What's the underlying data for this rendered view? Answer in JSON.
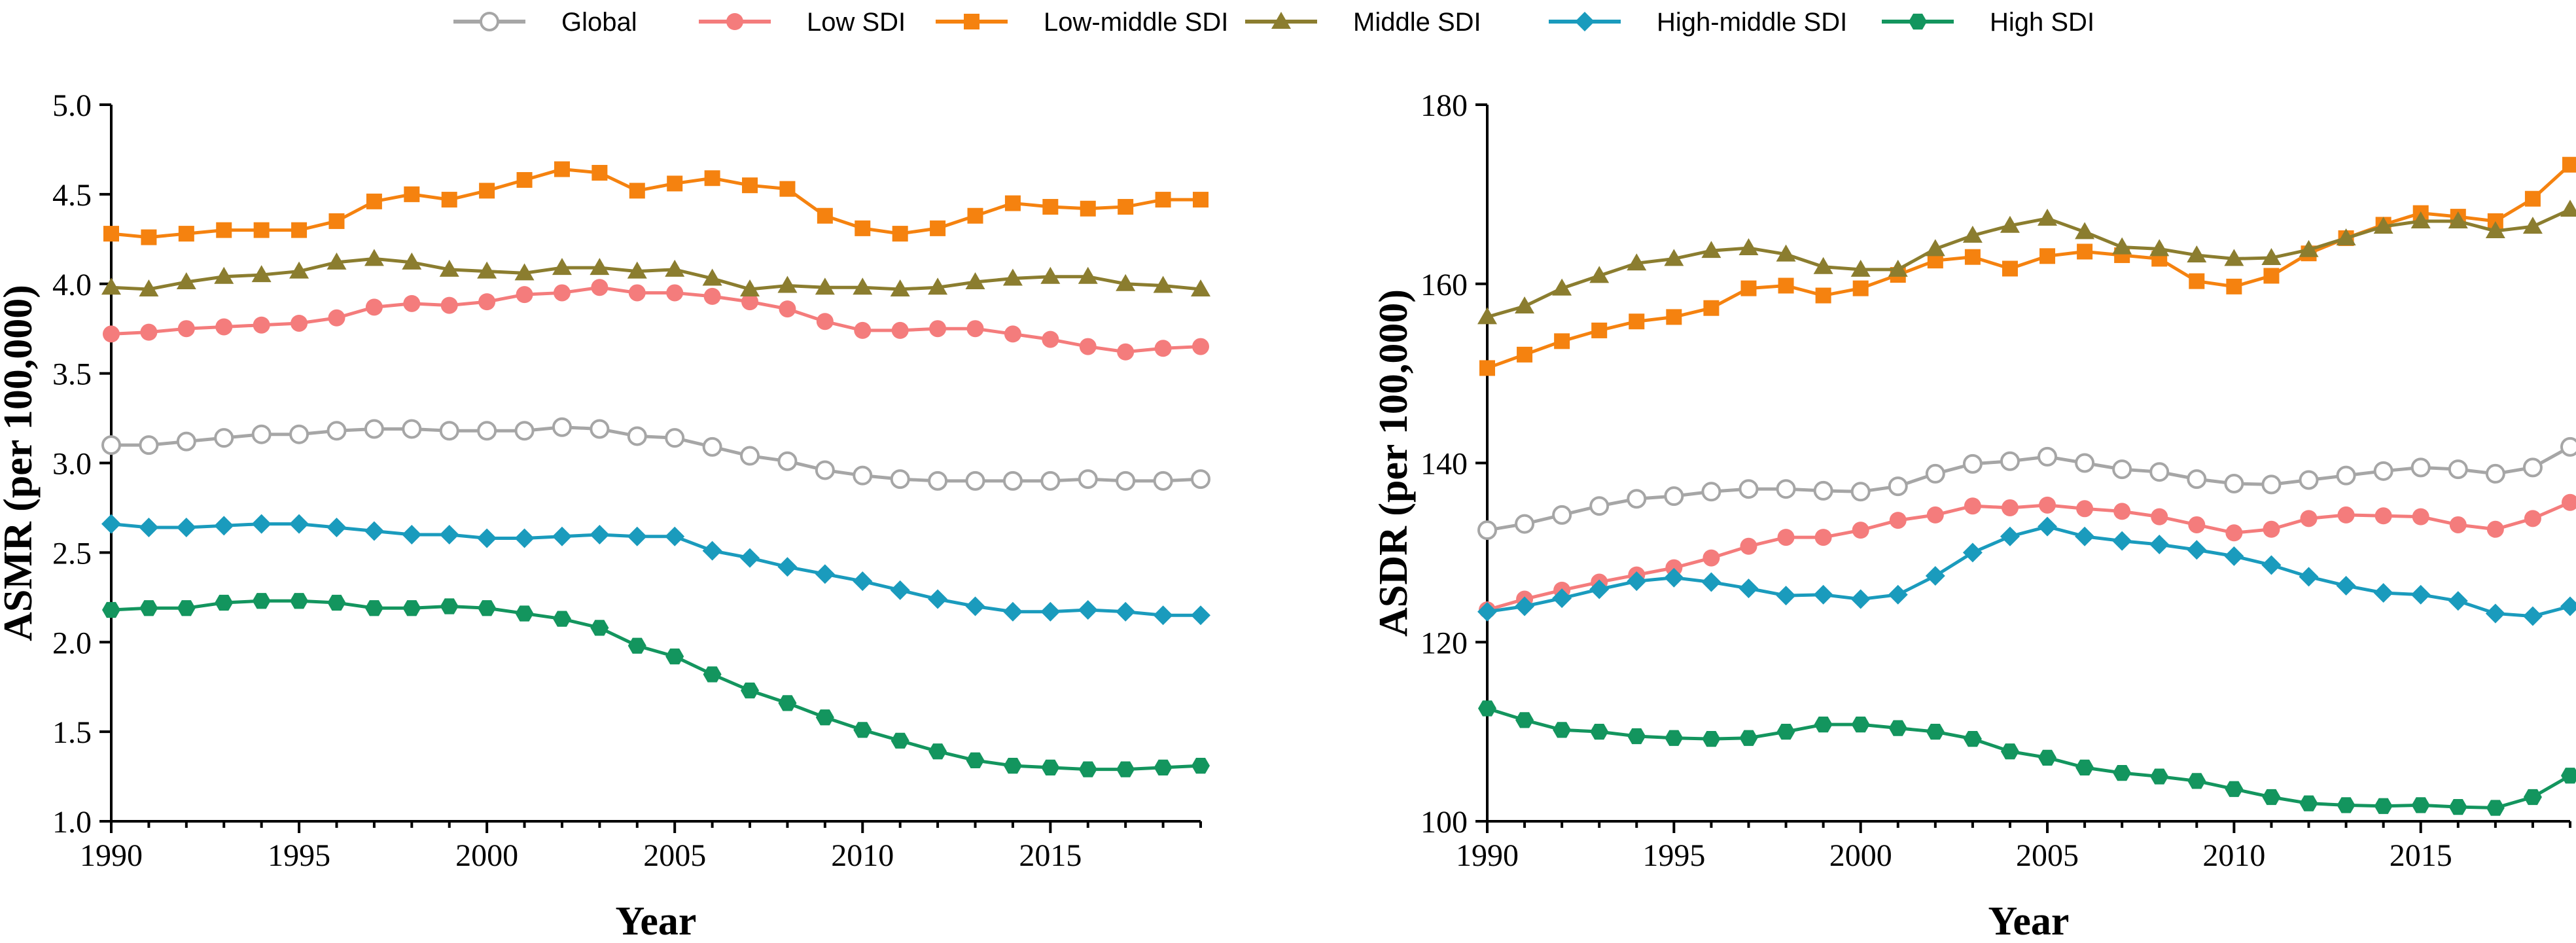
{
  "legend": [
    {
      "name": "Global",
      "color": "#a6a6a6",
      "marker": "circle-open"
    },
    {
      "name": "Low SDI",
      "color": "#f47c7c",
      "marker": "circle"
    },
    {
      "name": "Low-middle SDI",
      "color": "#f5820f",
      "marker": "square"
    },
    {
      "name": "Middle SDI",
      "color": "#8b7d2f",
      "marker": "triangle"
    },
    {
      "name": "High-middle SDI",
      "color": "#1a9bbd",
      "marker": "diamond"
    },
    {
      "name": "High SDI",
      "color": "#13955e",
      "marker": "hexagon"
    }
  ],
  "chart_data": [
    {
      "type": "line",
      "title": "",
      "xlabel": "Year",
      "ylabel": "ASMR (per 100,000)",
      "xlim": [
        1990,
        2019
      ],
      "ylim": [
        1.0,
        5.0
      ],
      "xticks": [
        1990,
        1995,
        2000,
        2005,
        2010,
        2015
      ],
      "xtick_labels": [
        "1990",
        "1995",
        "2000",
        "2005",
        "2010",
        "2015"
      ],
      "yticks": [
        1.0,
        1.5,
        2.0,
        2.5,
        3.0,
        3.5,
        4.0,
        4.5,
        5.0
      ],
      "ytick_labels": [
        "1.0",
        "1.5",
        "2.0",
        "2.5",
        "3.0",
        "3.5",
        "4.0",
        "4.5",
        "5.0"
      ],
      "x": [
        1990,
        1991,
        1992,
        1993,
        1994,
        1995,
        1996,
        1997,
        1998,
        1999,
        2000,
        2001,
        2002,
        2003,
        2004,
        2005,
        2006,
        2007,
        2008,
        2009,
        2010,
        2011,
        2012,
        2013,
        2014,
        2015,
        2016,
        2017,
        2018,
        2019
      ],
      "series": [
        {
          "name": "Global",
          "values": [
            3.1,
            3.1,
            3.12,
            3.14,
            3.16,
            3.16,
            3.18,
            3.19,
            3.19,
            3.18,
            3.18,
            3.18,
            3.2,
            3.19,
            3.15,
            3.14,
            3.09,
            3.04,
            3.01,
            2.96,
            2.93,
            2.91,
            2.9,
            2.9,
            2.9,
            2.9,
            2.91,
            2.9,
            2.9,
            2.91
          ]
        },
        {
          "name": "Low SDI",
          "values": [
            3.72,
            3.73,
            3.75,
            3.76,
            3.77,
            3.78,
            3.81,
            3.87,
            3.89,
            3.88,
            3.9,
            3.94,
            3.95,
            3.98,
            3.95,
            3.95,
            3.93,
            3.9,
            3.86,
            3.79,
            3.74,
            3.74,
            3.75,
            3.75,
            3.72,
            3.69,
            3.65,
            3.62,
            3.64,
            3.65
          ]
        },
        {
          "name": "Low-middle SDI",
          "values": [
            4.28,
            4.26,
            4.28,
            4.3,
            4.3,
            4.3,
            4.35,
            4.46,
            4.5,
            4.47,
            4.52,
            4.58,
            4.64,
            4.62,
            4.52,
            4.56,
            4.59,
            4.55,
            4.53,
            4.38,
            4.31,
            4.28,
            4.31,
            4.38,
            4.45,
            4.43,
            4.42,
            4.43,
            4.47,
            4.47
          ]
        },
        {
          "name": "Middle SDI",
          "values": [
            3.98,
            3.97,
            4.01,
            4.04,
            4.05,
            4.07,
            4.12,
            4.14,
            4.12,
            4.08,
            4.07,
            4.06,
            4.09,
            4.09,
            4.07,
            4.08,
            4.03,
            3.97,
            3.99,
            3.98,
            3.98,
            3.97,
            3.98,
            4.01,
            4.03,
            4.04,
            4.04,
            4.0,
            3.99,
            3.97
          ]
        },
        {
          "name": "High-middle SDI",
          "values": [
            2.66,
            2.64,
            2.64,
            2.65,
            2.66,
            2.66,
            2.64,
            2.62,
            2.6,
            2.6,
            2.58,
            2.58,
            2.59,
            2.6,
            2.59,
            2.59,
            2.51,
            2.47,
            2.42,
            2.38,
            2.34,
            2.29,
            2.24,
            2.2,
            2.17,
            2.17,
            2.18,
            2.17,
            2.15,
            2.15
          ]
        },
        {
          "name": "High SDI",
          "values": [
            2.18,
            2.19,
            2.19,
            2.22,
            2.23,
            2.23,
            2.22,
            2.19,
            2.19,
            2.2,
            2.19,
            2.16,
            2.13,
            2.08,
            1.98,
            1.92,
            1.82,
            1.73,
            1.66,
            1.58,
            1.51,
            1.45,
            1.39,
            1.34,
            1.31,
            1.3,
            1.29,
            1.29,
            1.3,
            1.31
          ]
        }
      ]
    },
    {
      "type": "line",
      "title": "",
      "xlabel": "Year",
      "ylabel": "ASDR (per 100,000)",
      "xlim": [
        1990,
        2019
      ],
      "ylim": [
        100,
        180
      ],
      "xticks": [
        1990,
        1995,
        2000,
        2005,
        2010,
        2015
      ],
      "xtick_labels": [
        "1990",
        "1995",
        "2000",
        "2005",
        "2010",
        "2015"
      ],
      "yticks": [
        100,
        120,
        140,
        160,
        180
      ],
      "ytick_labels": [
        "100",
        "120",
        "140",
        "160",
        "180"
      ],
      "x": [
        1990,
        1991,
        1992,
        1993,
        1994,
        1995,
        1996,
        1997,
        1998,
        1999,
        2000,
        2001,
        2002,
        2003,
        2004,
        2005,
        2006,
        2007,
        2008,
        2009,
        2010,
        2011,
        2012,
        2013,
        2014,
        2015,
        2016,
        2017,
        2018,
        2019
      ],
      "series": [
        {
          "name": "Global",
          "values": [
            132.5,
            133.2,
            134.2,
            135.2,
            136.0,
            136.3,
            136.8,
            137.1,
            137.1,
            136.9,
            136.8,
            137.4,
            138.8,
            139.9,
            140.2,
            140.7,
            140.0,
            139.3,
            139.0,
            138.2,
            137.7,
            137.6,
            138.1,
            138.6,
            139.1,
            139.5,
            139.3,
            138.8,
            139.5,
            141.8
          ]
        },
        {
          "name": "Low SDI",
          "values": [
            123.6,
            124.8,
            125.8,
            126.7,
            127.5,
            128.3,
            129.4,
            130.7,
            131.7,
            131.7,
            132.5,
            133.6,
            134.2,
            135.2,
            135.0,
            135.3,
            134.9,
            134.6,
            134.0,
            133.1,
            132.2,
            132.6,
            133.8,
            134.2,
            134.1,
            134.0,
            133.1,
            132.6,
            133.8,
            135.6
          ]
        },
        {
          "name": "Low-middle SDI",
          "values": [
            150.6,
            152.1,
            153.6,
            154.8,
            155.8,
            156.3,
            157.3,
            159.5,
            159.8,
            158.7,
            159.5,
            161.0,
            162.6,
            163.0,
            161.7,
            163.1,
            163.6,
            163.2,
            162.8,
            160.3,
            159.7,
            160.9,
            163.4,
            165.1,
            166.6,
            167.9,
            167.5,
            167.0,
            169.5,
            173.3
          ]
        },
        {
          "name": "Middle SDI",
          "values": [
            156.3,
            157.5,
            159.5,
            160.9,
            162.3,
            162.8,
            163.7,
            164.0,
            163.3,
            161.9,
            161.6,
            161.6,
            163.9,
            165.4,
            166.5,
            167.3,
            165.8,
            164.1,
            163.9,
            163.2,
            162.8,
            162.9,
            163.8,
            165.1,
            166.4,
            167.0,
            167.0,
            165.9,
            166.4,
            168.3
          ]
        },
        {
          "name": "High-middle SDI",
          "values": [
            123.4,
            124.0,
            124.9,
            125.9,
            126.8,
            127.2,
            126.7,
            126.0,
            125.2,
            125.3,
            124.8,
            125.3,
            127.4,
            130.0,
            131.8,
            132.9,
            131.8,
            131.3,
            130.9,
            130.3,
            129.6,
            128.6,
            127.3,
            126.3,
            125.5,
            125.3,
            124.6,
            123.2,
            122.9,
            124.0
          ]
        },
        {
          "name": "High SDI",
          "values": [
            112.6,
            111.3,
            110.2,
            110.0,
            109.5,
            109.3,
            109.2,
            109.3,
            110.0,
            110.8,
            110.8,
            110.4,
            110.0,
            109.2,
            107.8,
            107.1,
            106.0,
            105.4,
            105.0,
            104.5,
            103.6,
            102.7,
            102.0,
            101.8,
            101.7,
            101.8,
            101.6,
            101.5,
            102.7,
            105.1
          ]
        }
      ]
    }
  ]
}
